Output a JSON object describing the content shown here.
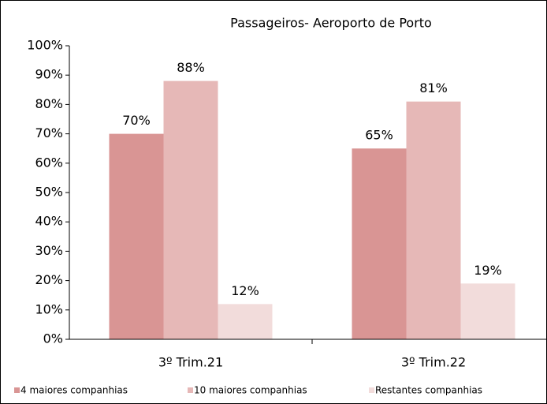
{
  "chart_data": {
    "type": "bar",
    "title": "Passageiros- Aeroporto de Porto",
    "categories": [
      "3º Trim.21",
      "3º Trim.22"
    ],
    "series": [
      {
        "name": "4 maiores companhias",
        "color": "#d99594",
        "values": [
          70,
          65
        ],
        "value_labels": [
          "70%",
          "65%"
        ]
      },
      {
        "name": "10 maiores companhias",
        "color": "#e6b8b7",
        "values": [
          88,
          81
        ],
        "value_labels": [
          "88%",
          "81%"
        ]
      },
      {
        "name": "Restantes companhias",
        "color": "#f2dcdb",
        "values": [
          12,
          19
        ],
        "value_labels": [
          "12%",
          "19%"
        ]
      }
    ],
    "ylim": [
      0,
      100
    ],
    "yticks": [
      {
        "value": 0,
        "label": "0%"
      },
      {
        "value": 10,
        "label": "10%"
      },
      {
        "value": 20,
        "label": "20%"
      },
      {
        "value": 30,
        "label": "30%"
      },
      {
        "value": 40,
        "label": "40%"
      },
      {
        "value": 50,
        "label": "50%"
      },
      {
        "value": 60,
        "label": "60%"
      },
      {
        "value": 70,
        "label": "70%"
      },
      {
        "value": 80,
        "label": "80%"
      },
      {
        "value": 90,
        "label": "90%"
      },
      {
        "value": 100,
        "label": "100%"
      }
    ],
    "grid": false,
    "legend": "bottom"
  }
}
